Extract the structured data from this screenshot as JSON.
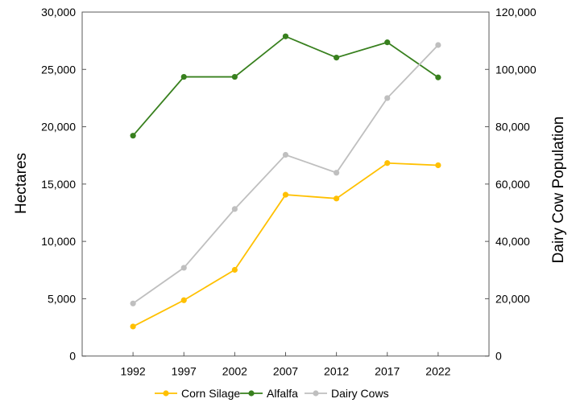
{
  "chart_data": {
    "type": "line",
    "title": "",
    "xlabel": "",
    "ylabel": "Hectares",
    "y2label": "Dairy Cow Population",
    "categories": [
      "1992",
      "1997",
      "2002",
      "2007",
      "2012",
      "2017",
      "2022"
    ],
    "ylim": [
      0,
      30000
    ],
    "y2lim": [
      0,
      120000
    ],
    "yticks": [
      "0",
      "5,000",
      "10,000",
      "15,000",
      "20,000",
      "25,000",
      "30,000"
    ],
    "y2ticks": [
      "0",
      "20,000",
      "40,000",
      "60,000",
      "80,000",
      "100,000",
      "120,000"
    ],
    "grid": false,
    "legend_position": "bottom",
    "series": [
      {
        "name": "Corn Silage",
        "axis": "left",
        "color": "#FFC000",
        "values": [
          2580,
          4870,
          7520,
          14070,
          13740,
          16830,
          16640
        ]
      },
      {
        "name": "Alfalfa",
        "axis": "left",
        "color": "#38801E",
        "values": [
          19220,
          24350,
          24350,
          27880,
          26030,
          27360,
          24300
        ]
      },
      {
        "name": "Dairy Cows",
        "axis": "right",
        "color": "#BFBFBF",
        "values": [
          18350,
          30800,
          51300,
          70200,
          63950,
          90000,
          108500
        ]
      }
    ]
  }
}
